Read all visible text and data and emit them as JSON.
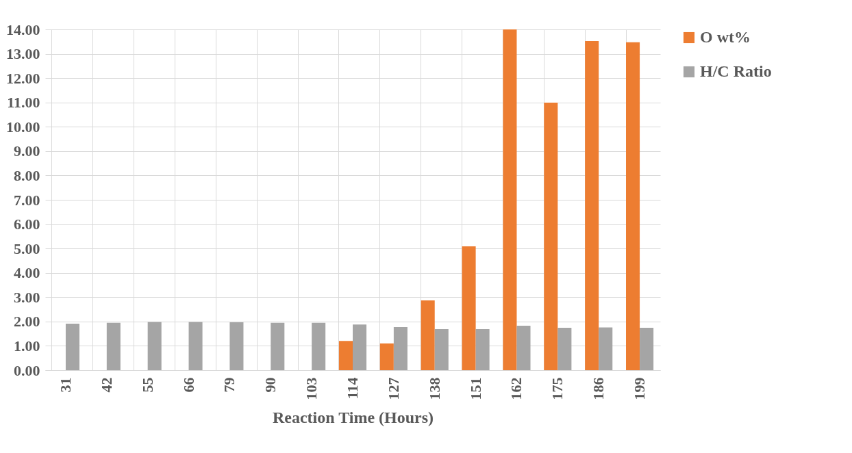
{
  "chart_data": {
    "type": "bar",
    "xlabel": "Reaction Time (Hours)",
    "categories": [
      "31",
      "42",
      "55",
      "66",
      "79",
      "90",
      "103",
      "114",
      "127",
      "138",
      "151",
      "162",
      "175",
      "186",
      "199"
    ],
    "series": [
      {
        "name": "O wt%",
        "color": "#ed7d31",
        "values": [
          0,
          0,
          0,
          0,
          0,
          0,
          0,
          1.2,
          1.1,
          2.87,
          5.09,
          14.0,
          10.99,
          13.52,
          13.47
        ]
      },
      {
        "name": "H/C Ratio",
        "color": "#a5a5a5",
        "values": [
          1.91,
          1.95,
          1.98,
          1.98,
          1.97,
          1.95,
          1.95,
          1.88,
          1.77,
          1.69,
          1.69,
          1.83,
          1.74,
          1.76,
          1.74
        ]
      }
    ],
    "ylim": [
      0,
      14
    ],
    "yticks": [
      {
        "value": 0,
        "label": "0.00"
      },
      {
        "value": 1,
        "label": "1.00"
      },
      {
        "value": 2,
        "label": "2.00"
      },
      {
        "value": 3,
        "label": "3.00"
      },
      {
        "value": 4,
        "label": "4.00"
      },
      {
        "value": 5,
        "label": "5.00"
      },
      {
        "value": 6,
        "label": "6.00"
      },
      {
        "value": 7,
        "label": "7.00"
      },
      {
        "value": 8,
        "label": "8.00"
      },
      {
        "value": 9,
        "label": "9.00"
      },
      {
        "value": 10,
        "label": "10.00"
      },
      {
        "value": 11,
        "label": "11.00"
      },
      {
        "value": 12,
        "label": "12.00"
      },
      {
        "value": 13,
        "label": "13.00"
      },
      {
        "value": 14,
        "label": "14.00"
      }
    ],
    "grid": true,
    "legend": "right"
  }
}
